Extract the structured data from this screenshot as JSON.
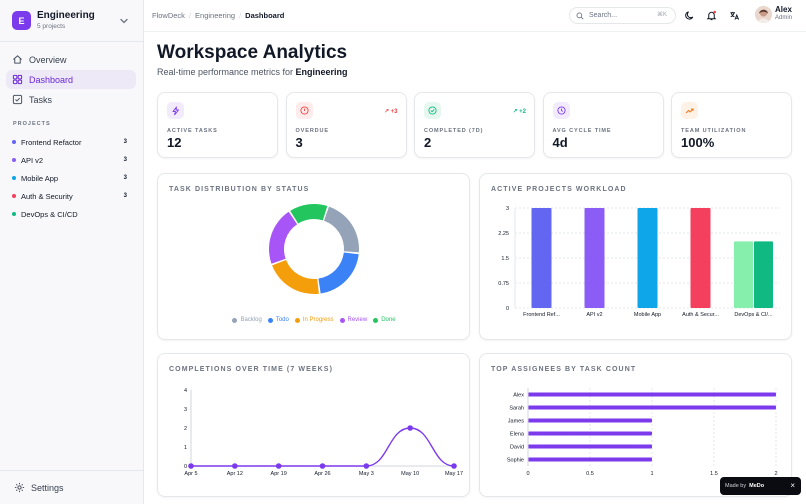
{
  "workspace": {
    "initial": "E",
    "name": "Engineering",
    "subtitle": "5 projects"
  },
  "nav": [
    {
      "label": "Overview",
      "icon": "home-icon"
    },
    {
      "label": "Dashboard",
      "icon": "dashboard-icon",
      "active": true
    },
    {
      "label": "Tasks",
      "icon": "tasks-icon"
    }
  ],
  "projects_heading": "PROJECTS",
  "projects": [
    {
      "name": "Frontend Refactor",
      "count": "3",
      "color": "#6366f1"
    },
    {
      "name": "API v2",
      "count": "3",
      "color": "#8b5cf6"
    },
    {
      "name": "Mobile App",
      "count": "3",
      "color": "#0ea5e9"
    },
    {
      "name": "Auth & Security",
      "count": "3",
      "color": "#f43f5e"
    },
    {
      "name": "DevOps & CI/CD",
      "count": "",
      "color": "#10b981"
    }
  ],
  "settings_label": "Settings",
  "breadcrumb": [
    "FlowDeck",
    "Engineering",
    "Dashboard"
  ],
  "search": {
    "placeholder": "Search...",
    "shortcut": "⌘K"
  },
  "user": {
    "name": "Alex",
    "role": "Admin"
  },
  "page": {
    "title": "Workspace Analytics",
    "subtitle_prefix": "Real-time performance metrics for ",
    "subtitle_bold": "Engineering"
  },
  "stats": [
    {
      "label": "ACTIVE TASKS",
      "value": "12",
      "trend": "",
      "icon": "bolt-icon",
      "color": "#7c3aed",
      "bg": "#f1ebfd"
    },
    {
      "label": "OVERDUE",
      "value": "3",
      "trend": "+3",
      "trend_color": "#ef4444",
      "icon": "alert-icon",
      "color": "#ef4444",
      "bg": "#fdeceb"
    },
    {
      "label": "COMPLETED (7D)",
      "value": "2",
      "trend": "+2",
      "trend_color": "#10b981",
      "icon": "check-icon",
      "color": "#10b981",
      "bg": "#e6f7ef"
    },
    {
      "label": "AVG CYCLE TIME",
      "value": "4d",
      "trend": "",
      "icon": "clock-icon",
      "color": "#7c3aed",
      "bg": "#f1ebfd"
    },
    {
      "label": "TEAM UTILIZATION",
      "value": "100%",
      "trend": "",
      "icon": "trend-up-icon",
      "color": "#f97316",
      "bg": "#fef1e6"
    }
  ],
  "chart_data": [
    {
      "type": "pie",
      "title": "TASK DISTRIBUTION BY STATUS",
      "categories": [
        "Backlog",
        "Todo",
        "In Progress",
        "Review",
        "Done"
      ],
      "values": [
        3,
        3,
        3,
        3,
        2
      ],
      "colors": [
        "#94a3b8",
        "#3b82f6",
        "#f59e0b",
        "#a855f7",
        "#22c55e"
      ],
      "legend": "bottom"
    },
    {
      "type": "bar",
      "title": "ACTIVE PROJECTS WORKLOAD",
      "categories": [
        "Frontend Ref...",
        "API v2",
        "Mobile App",
        "Auth & Secur...",
        "DevOps & CI/..."
      ],
      "series": [
        {
          "values": [
            3,
            3,
            3,
            3,
            2
          ],
          "colors": [
            "#6366f1",
            "#8b5cf6",
            "#0ea5e9",
            "#f43f5e",
            "#86efac"
          ]
        },
        {
          "values": [
            0,
            0,
            0,
            0,
            2
          ],
          "colors": [
            "#10b981",
            "#10b981",
            "#10b981",
            "#10b981",
            "#10b981"
          ]
        }
      ],
      "yticks": [
        "0",
        "0.75",
        "1.5",
        "2.25",
        "3"
      ],
      "ylim": [
        0,
        3
      ],
      "grid": true
    },
    {
      "type": "line",
      "title": "COMPLETIONS OVER TIME (7 WEEKS)",
      "x": [
        "Apr 5",
        "Apr 12",
        "Apr 19",
        "Apr 26",
        "May 3",
        "May 10",
        "May 17"
      ],
      "values": [
        0,
        0,
        0,
        0,
        0,
        2,
        0
      ],
      "yticks": [
        "0",
        "1",
        "2",
        "3",
        "4"
      ],
      "ylim": [
        0,
        4
      ],
      "color": "#7c3aed"
    },
    {
      "type": "bar",
      "orientation": "horizontal",
      "title": "TOP ASSIGNEES BY TASK COUNT",
      "categories": [
        "Alex",
        "Sarah",
        "James",
        "Elena",
        "David",
        "Sophie"
      ],
      "values": [
        2,
        2,
        1,
        1,
        1,
        1
      ],
      "xticks": [
        "0",
        "0.5",
        "1",
        "1.5",
        "2"
      ],
      "xlim": [
        0,
        2
      ],
      "color": "#7c3aed"
    }
  ],
  "made_by": {
    "prefix": "Made by",
    "brand": "MeDo"
  }
}
